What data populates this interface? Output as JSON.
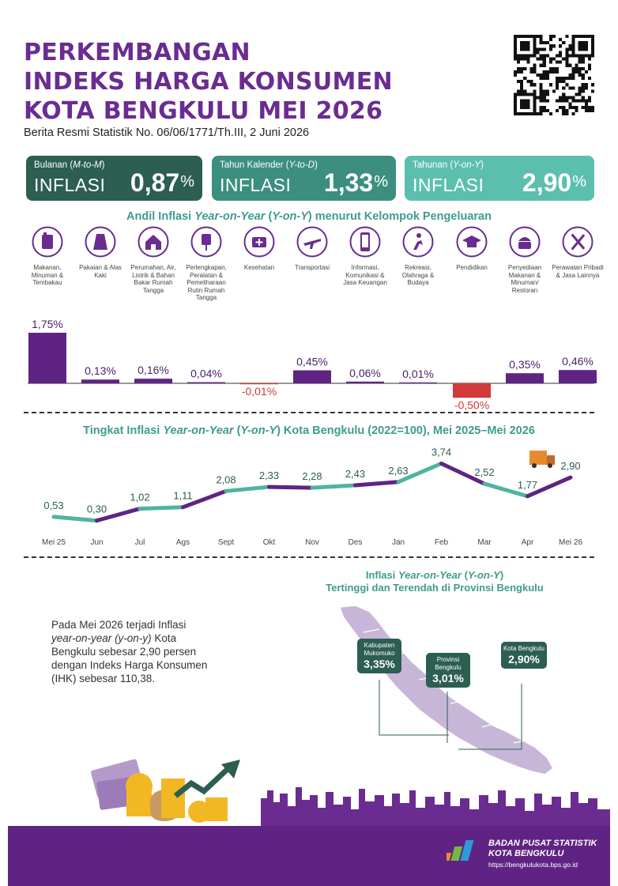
{
  "header": {
    "title_lines": [
      "PERKEMBANGAN",
      "INDEKS HARGA KONSUMEN",
      "KOTA BENGKULU MEI 2026"
    ],
    "subtitle": "Berita Resmi Statistik No. 06/06/1771/Th.III, 2 Juni 2026"
  },
  "cards": [
    {
      "prefix": "Bulanan (",
      "italic": "M-to-M",
      "suffix": ")",
      "word": "INFLASI",
      "value": "0,87",
      "unit": "%"
    },
    {
      "prefix": "Tahun Kalender (",
      "italic": "Y-to-D",
      "suffix": ")",
      "word": "INFLASI",
      "value": "1,33",
      "unit": "%"
    },
    {
      "prefix": "Tahunan (",
      "italic": "Y-on-Y",
      "suffix": ")",
      "word": "INFLASI",
      "value": "2,90",
      "unit": "%"
    }
  ],
  "andil_title": {
    "pre": "Andil Inflasi ",
    "italic1": "Year-on-Year",
    "mid": " (",
    "italic2": "Y-on-Y",
    "post": ") menurut Kelompok Pengeluaran"
  },
  "trend_title": {
    "pre": "Tingkat Inflasi ",
    "italic1": "Year-on-Year",
    "mid": " (",
    "italic2": "Y-on-Y",
    "post": ") Kota Bengkulu (2022=100), Mei 2025–Mei 2026"
  },
  "map_title": {
    "pre": "Inflasi ",
    "italic1": "Year-on-Year",
    "mid": " (",
    "italic2": "Y-on-Y",
    "post": ")",
    "line2": "Tertinggi dan Terendah di Provinsi Bengkulu"
  },
  "paragraph": {
    "p1": "Pada Mei 2026 terjadi Inflasi ",
    "italic1": "year-on-year",
    "p2": " ",
    "italic2": "(y-on-y)",
    "p3": " Kota Bengkulu sebesar 2,90 persen dengan Indeks Harga Konsumen (IHK) sebesar 110,38."
  },
  "callouts": [
    {
      "name": "Kabupaten Mukomuko",
      "value": "3,35%"
    },
    {
      "name": "Provinsi Bengkulu",
      "value": "3,01%"
    },
    {
      "name": "Kota Bengkulu",
      "value": "2,90%"
    }
  ],
  "icons": [
    "food-icon",
    "clothing-icon",
    "house-icon",
    "appliance-icon",
    "health-icon",
    "airplane-icon",
    "phone-icon",
    "sports-icon",
    "graduation-cap-icon",
    "restaurant-icon",
    "personal-care-icon"
  ],
  "colors": {
    "purple": "#6a2c91",
    "teal": "#3f9c8c",
    "dark_teal": "#2c5e52",
    "bar_positive": "#5f2483",
    "bar_negative": "#d13a38",
    "footer": "#5f2483"
  },
  "chart_data": [
    {
      "type": "bar",
      "title": "Andil Inflasi Year-on-Year (Y-on-Y) menurut Kelompok Pengeluaran",
      "categories": [
        "Makanan, Minuman & Tembakau",
        "Pakaian & Alas Kaki",
        "Perumahan, Air, Listrik & Bahan Bakar Rumah Tangga",
        "Perlengkapan, Peralatan & Pemeliharaan Rutin Rumah Tangga",
        "Kesehatan",
        "Transportasi",
        "Informasi, Komunikasi & Jasa Keuangan",
        "Rekreasi, Olahraga & Budaya",
        "Pendidikan",
        "Penyediaan Makanan & Minuman/ Restoran",
        "Perawatan Pribadi & Jasa Lainnya"
      ],
      "values": [
        1.75,
        0.13,
        0.16,
        0.04,
        -0.01,
        0.45,
        0.06,
        0.01,
        -0.5,
        0.35,
        0.46
      ],
      "labels": [
        "1,75%",
        "0,13%",
        "0,16%",
        "0,04%",
        "-0,01%",
        "0,45%",
        "0,06%",
        "0,01%",
        "-0,50%",
        "0,35%",
        "0,46%"
      ]
    },
    {
      "type": "line",
      "title": "Tingkat Inflasi Year-on-Year (Y-on-Y) Kota Bengkulu (2022=100), Mei 2025–Mei 2026",
      "categories": [
        "Mei 25",
        "Jun",
        "Jul",
        "Ags",
        "Sept",
        "Okt",
        "Nov",
        "Des",
        "Jan",
        "Feb",
        "Mar",
        "Apr",
        "Mei 26"
      ],
      "values": [
        0.53,
        0.3,
        1.02,
        1.11,
        2.08,
        2.33,
        2.28,
        2.43,
        2.63,
        3.74,
        2.52,
        1.77,
        2.9
      ],
      "labels": [
        "0,53",
        "0,30",
        "1,02",
        "1,11",
        "2,08",
        "2,33",
        "2,28",
        "2,43",
        "2,63",
        "3,74",
        "2,52",
        "1,77",
        "2,90"
      ]
    }
  ],
  "footer": {
    "org_line1": "BADAN PUSAT STATISTIK",
    "org_line2": "KOTA BENGKULU",
    "url": "https://bengkulukota.bps.go.id"
  }
}
